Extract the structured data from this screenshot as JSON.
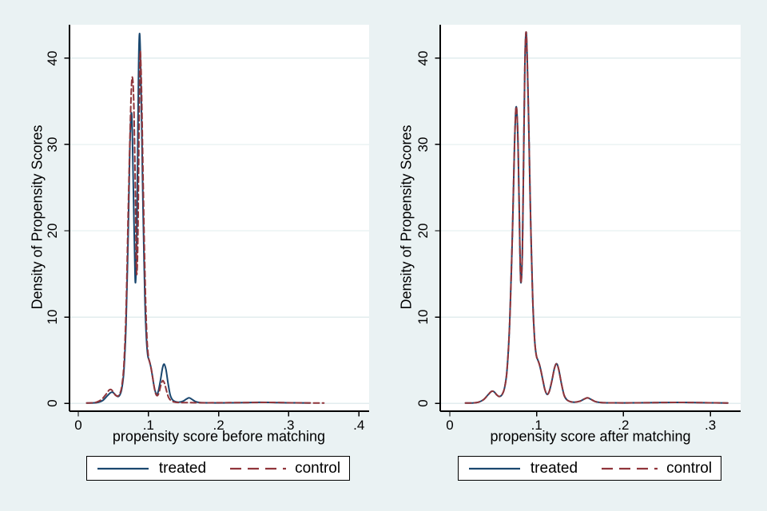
{
  "figure": {
    "background": "#eaf2f3",
    "plot_background": "#ffffff",
    "grid_color": "#e2ecee",
    "axis_color": "#000000",
    "text_color": "#000000",
    "navy": "#1a476f",
    "maroon": "#90353b"
  },
  "legend": {
    "treated_label": "treated",
    "control_label": "control"
  },
  "chart_data": [
    {
      "type": "line",
      "id": "before",
      "xlabel": "propensity score before matching",
      "ylabel": "Density of Propensity Scores",
      "xticks": [
        0,
        0.1,
        0.2,
        0.3,
        0.4
      ],
      "xtick_labels": [
        "0",
        ".1",
        ".2",
        ".3",
        ".4"
      ],
      "yticks": [
        0,
        10,
        20,
        30,
        40
      ],
      "ytick_labels": [
        "0",
        "10",
        "20",
        "30",
        "40"
      ],
      "xlim": [
        -0.013,
        0.415
      ],
      "ylim": [
        0,
        43.9
      ],
      "grid": "horizontal",
      "legend_position": "bottom",
      "series": [
        {
          "name": "treated",
          "style": "solid",
          "color_key": "navy",
          "points": [
            [
              0.012,
              0.05
            ],
            [
              0.02,
              0.06
            ],
            [
              0.028,
              0.12
            ],
            [
              0.035,
              0.35
            ],
            [
              0.041,
              0.85
            ],
            [
              0.046,
              1.25
            ],
            [
              0.049,
              1.3
            ],
            [
              0.053,
              1.0
            ],
            [
              0.056,
              0.8
            ],
            [
              0.059,
              0.95
            ],
            [
              0.062,
              1.7
            ],
            [
              0.065,
              3.8
            ],
            [
              0.068,
              9.0
            ],
            [
              0.071,
              19.0
            ],
            [
              0.0735,
              29.5
            ],
            [
              0.0755,
              33.6
            ],
            [
              0.077,
              31.5
            ],
            [
              0.0785,
              25.0
            ],
            [
              0.0805,
              16.5
            ],
            [
              0.0815,
              14.0
            ],
            [
              0.083,
              17.5
            ],
            [
              0.0845,
              28.0
            ],
            [
              0.086,
              39.0
            ],
            [
              0.0872,
              42.8
            ],
            [
              0.0885,
              40.5
            ],
            [
              0.09,
              34.0
            ],
            [
              0.0915,
              26.5
            ],
            [
              0.093,
              19.5
            ],
            [
              0.095,
              12.0
            ],
            [
              0.097,
              7.6
            ],
            [
              0.099,
              5.6
            ],
            [
              0.101,
              5.0
            ],
            [
              0.103,
              4.4
            ],
            [
              0.105,
              3.5
            ],
            [
              0.107,
              2.5
            ],
            [
              0.109,
              1.6
            ],
            [
              0.1115,
              1.05
            ],
            [
              0.114,
              1.4
            ],
            [
              0.117,
              2.6
            ],
            [
              0.12,
              4.1
            ],
            [
              0.1225,
              4.55
            ],
            [
              0.125,
              3.9
            ],
            [
              0.128,
              2.3
            ],
            [
              0.131,
              1.0
            ],
            [
              0.134,
              0.45
            ],
            [
              0.138,
              0.22
            ],
            [
              0.143,
              0.15
            ],
            [
              0.149,
              0.25
            ],
            [
              0.154,
              0.5
            ],
            [
              0.158,
              0.65
            ],
            [
              0.162,
              0.48
            ],
            [
              0.167,
              0.22
            ],
            [
              0.174,
              0.1
            ],
            [
              0.19,
              0.07
            ],
            [
              0.21,
              0.07
            ],
            [
              0.235,
              0.09
            ],
            [
              0.26,
              0.13
            ],
            [
              0.285,
              0.1
            ],
            [
              0.31,
              0.07
            ],
            [
              0.33,
              0.06
            ]
          ]
        },
        {
          "name": "control",
          "style": "dashed",
          "color_key": "maroon",
          "points": [
            [
              0.012,
              0.05
            ],
            [
              0.019,
              0.07
            ],
            [
              0.026,
              0.15
            ],
            [
              0.033,
              0.45
            ],
            [
              0.039,
              1.0
            ],
            [
              0.044,
              1.55
            ],
            [
              0.047,
              1.6
            ],
            [
              0.05,
              1.3
            ],
            [
              0.053,
              0.95
            ],
            [
              0.056,
              0.85
            ],
            [
              0.059,
              1.1
            ],
            [
              0.062,
              2.0
            ],
            [
              0.065,
              4.5
            ],
            [
              0.068,
              10.5
            ],
            [
              0.071,
              21.5
            ],
            [
              0.074,
              32.0
            ],
            [
              0.076,
              37.0
            ],
            [
              0.0775,
              37.6
            ],
            [
              0.079,
              35.0
            ],
            [
              0.081,
              26.5
            ],
            [
              0.0825,
              17.5
            ],
            [
              0.0835,
              15.0
            ],
            [
              0.085,
              19.5
            ],
            [
              0.0865,
              31.0
            ],
            [
              0.088,
              40.4
            ],
            [
              0.0895,
              38.5
            ],
            [
              0.091,
              32.5
            ],
            [
              0.0925,
              25.5
            ],
            [
              0.094,
              19.0
            ],
            [
              0.096,
              11.8
            ],
            [
              0.098,
              7.4
            ],
            [
              0.1,
              5.4
            ],
            [
              0.102,
              4.7
            ],
            [
              0.104,
              4.0
            ],
            [
              0.106,
              3.0
            ],
            [
              0.108,
              2.0
            ],
            [
              0.11,
              1.2
            ],
            [
              0.1125,
              0.9
            ],
            [
              0.115,
              1.25
            ],
            [
              0.118,
              2.2
            ],
            [
              0.1205,
              2.65
            ],
            [
              0.123,
              2.3
            ],
            [
              0.126,
              1.4
            ],
            [
              0.129,
              0.65
            ],
            [
              0.133,
              0.3
            ],
            [
              0.138,
              0.15
            ],
            [
              0.146,
              0.1
            ],
            [
              0.158,
              0.1
            ],
            [
              0.17,
              0.08
            ],
            [
              0.19,
              0.08
            ],
            [
              0.215,
              0.09
            ],
            [
              0.245,
              0.11
            ],
            [
              0.27,
              0.12
            ],
            [
              0.295,
              0.09
            ],
            [
              0.315,
              0.07
            ],
            [
              0.335,
              0.06
            ],
            [
              0.35,
              0.05
            ]
          ]
        }
      ]
    },
    {
      "type": "line",
      "id": "after",
      "xlabel": "propensity score after matching",
      "ylabel": "Density of Propensity Scores",
      "xticks": [
        0,
        0.1,
        0.2,
        0.3
      ],
      "xtick_labels": [
        "0",
        ".1",
        ".2",
        ".3"
      ],
      "yticks": [
        0,
        10,
        20,
        30,
        40
      ],
      "ytick_labels": [
        "0",
        "10",
        "20",
        "30",
        "40"
      ],
      "xlim": [
        -0.011,
        0.335
      ],
      "ylim": [
        0,
        43.9
      ],
      "grid": "horizontal",
      "legend_position": "bottom",
      "series": [
        {
          "name": "treated",
          "style": "solid",
          "color_key": "navy",
          "points": [
            [
              0.018,
              0.05
            ],
            [
              0.026,
              0.06
            ],
            [
              0.033,
              0.15
            ],
            [
              0.039,
              0.45
            ],
            [
              0.044,
              1.0
            ],
            [
              0.048,
              1.4
            ],
            [
              0.051,
              1.35
            ],
            [
              0.054,
              1.0
            ],
            [
              0.057,
              0.8
            ],
            [
              0.06,
              1.0
            ],
            [
              0.063,
              1.8
            ],
            [
              0.066,
              4.0
            ],
            [
              0.069,
              9.5
            ],
            [
              0.072,
              19.5
            ],
            [
              0.0745,
              30.0
            ],
            [
              0.0763,
              34.3
            ],
            [
              0.078,
              32.0
            ],
            [
              0.0795,
              25.0
            ],
            [
              0.081,
              16.5
            ],
            [
              0.082,
              14.0
            ],
            [
              0.0835,
              17.5
            ],
            [
              0.085,
              28.5
            ],
            [
              0.0865,
              39.5
            ],
            [
              0.0878,
              43.0
            ],
            [
              0.089,
              40.5
            ],
            [
              0.0905,
              34.0
            ],
            [
              0.092,
              26.5
            ],
            [
              0.0935,
              19.5
            ],
            [
              0.0955,
              12.0
            ],
            [
              0.0975,
              7.6
            ],
            [
              0.0995,
              5.6
            ],
            [
              0.1015,
              5.0
            ],
            [
              0.1035,
              4.4
            ],
            [
              0.1055,
              3.5
            ],
            [
              0.1075,
              2.5
            ],
            [
              0.1095,
              1.6
            ],
            [
              0.112,
              1.05
            ],
            [
              0.1145,
              1.4
            ],
            [
              0.1175,
              2.6
            ],
            [
              0.1205,
              4.1
            ],
            [
              0.123,
              4.6
            ],
            [
              0.1255,
              3.9
            ],
            [
              0.1285,
              2.3
            ],
            [
              0.1315,
              1.0
            ],
            [
              0.1345,
              0.45
            ],
            [
              0.1385,
              0.22
            ],
            [
              0.1435,
              0.15
            ],
            [
              0.1495,
              0.25
            ],
            [
              0.1545,
              0.5
            ],
            [
              0.1585,
              0.65
            ],
            [
              0.1625,
              0.48
            ],
            [
              0.1675,
              0.22
            ],
            [
              0.175,
              0.1
            ],
            [
              0.19,
              0.07
            ],
            [
              0.21,
              0.07
            ],
            [
              0.235,
              0.09
            ],
            [
              0.26,
              0.12
            ],
            [
              0.285,
              0.1
            ],
            [
              0.305,
              0.07
            ],
            [
              0.32,
              0.06
            ]
          ]
        },
        {
          "name": "control",
          "style": "dashed",
          "color_key": "maroon",
          "points": [
            [
              0.018,
              0.05
            ],
            [
              0.026,
              0.06
            ],
            [
              0.033,
              0.15
            ],
            [
              0.039,
              0.45
            ],
            [
              0.044,
              1.0
            ],
            [
              0.048,
              1.4
            ],
            [
              0.051,
              1.35
            ],
            [
              0.054,
              1.0
            ],
            [
              0.057,
              0.8
            ],
            [
              0.06,
              1.0
            ],
            [
              0.063,
              1.8
            ],
            [
              0.066,
              4.0
            ],
            [
              0.069,
              9.5
            ],
            [
              0.072,
              19.5
            ],
            [
              0.0745,
              30.0
            ],
            [
              0.0763,
              34.3
            ],
            [
              0.078,
              32.0
            ],
            [
              0.0795,
              25.0
            ],
            [
              0.081,
              16.5
            ],
            [
              0.082,
              14.0
            ],
            [
              0.0835,
              17.5
            ],
            [
              0.085,
              28.5
            ],
            [
              0.0865,
              39.5
            ],
            [
              0.0878,
              43.0
            ],
            [
              0.089,
              40.5
            ],
            [
              0.0905,
              34.0
            ],
            [
              0.092,
              26.5
            ],
            [
              0.0935,
              19.5
            ],
            [
              0.0955,
              12.0
            ],
            [
              0.0975,
              7.6
            ],
            [
              0.0995,
              5.6
            ],
            [
              0.1015,
              5.0
            ],
            [
              0.1035,
              4.4
            ],
            [
              0.1055,
              3.5
            ],
            [
              0.1075,
              2.5
            ],
            [
              0.1095,
              1.6
            ],
            [
              0.112,
              1.05
            ],
            [
              0.1145,
              1.4
            ],
            [
              0.1175,
              2.6
            ],
            [
              0.1205,
              4.1
            ],
            [
              0.123,
              4.6
            ],
            [
              0.1255,
              3.9
            ],
            [
              0.1285,
              2.3
            ],
            [
              0.1315,
              1.0
            ],
            [
              0.1345,
              0.45
            ],
            [
              0.1385,
              0.22
            ],
            [
              0.1435,
              0.15
            ],
            [
              0.1495,
              0.25
            ],
            [
              0.1545,
              0.5
            ],
            [
              0.1585,
              0.65
            ],
            [
              0.1625,
              0.48
            ],
            [
              0.1675,
              0.22
            ],
            [
              0.175,
              0.1
            ],
            [
              0.19,
              0.07
            ],
            [
              0.21,
              0.07
            ],
            [
              0.235,
              0.09
            ],
            [
              0.26,
              0.12
            ],
            [
              0.285,
              0.1
            ],
            [
              0.305,
              0.07
            ],
            [
              0.32,
              0.06
            ]
          ]
        }
      ]
    }
  ]
}
